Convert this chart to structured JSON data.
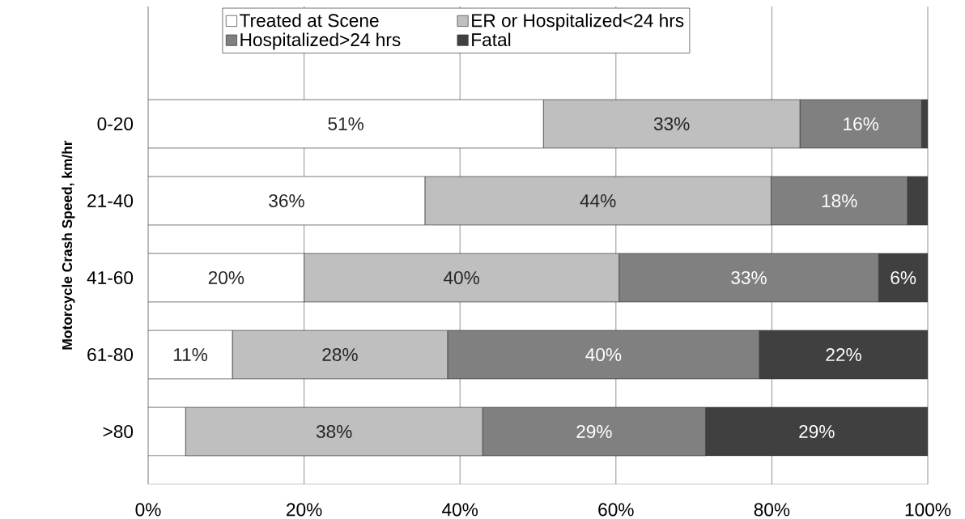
{
  "chart_data": {
    "type": "bar",
    "orientation": "horizontal",
    "stacked": true,
    "ylabel": "Motorcycle Crash Speed, km/hr",
    "categories": [
      "0-20",
      "21-40",
      "41-60",
      "61-80",
      ">80"
    ],
    "series": [
      {
        "name": "Treated at Scene",
        "color": "#ffffff",
        "values": [
          50.7,
          35.5,
          20.0,
          10.8,
          4.8
        ],
        "value_labels": [
          "51%",
          "36%",
          "20%",
          "11%",
          null
        ]
      },
      {
        "name": "ER or Hospitalized<24 hrs",
        "color": "#bfbfbf",
        "values": [
          32.9,
          44.4,
          40.4,
          27.6,
          38.1
        ],
        "value_labels": [
          "33%",
          "44%",
          "40%",
          "28%",
          "38%"
        ]
      },
      {
        "name": "Hospitalized>24 hrs",
        "color": "#808080",
        "values": [
          15.6,
          17.5,
          33.3,
          40.0,
          28.6
        ],
        "value_labels": [
          "16%",
          "18%",
          "33%",
          "40%",
          "29%"
        ]
      },
      {
        "name": "Fatal",
        "color": "#404040",
        "values": [
          0.8,
          2.6,
          6.3,
          21.6,
          28.5
        ],
        "value_labels": [
          null,
          null,
          "6%",
          "22%",
          "29%"
        ]
      }
    ],
    "xlim": [
      0,
      100
    ],
    "xticks": [
      {
        "value": 0,
        "label": "0%"
      },
      {
        "value": 20,
        "label": "20%"
      },
      {
        "value": 40,
        "label": "40%"
      },
      {
        "value": 60,
        "label": "60%"
      },
      {
        "value": 80,
        "label": "80%"
      },
      {
        "value": 100,
        "label": "100%"
      }
    ],
    "grid": "x",
    "legend": "top"
  }
}
